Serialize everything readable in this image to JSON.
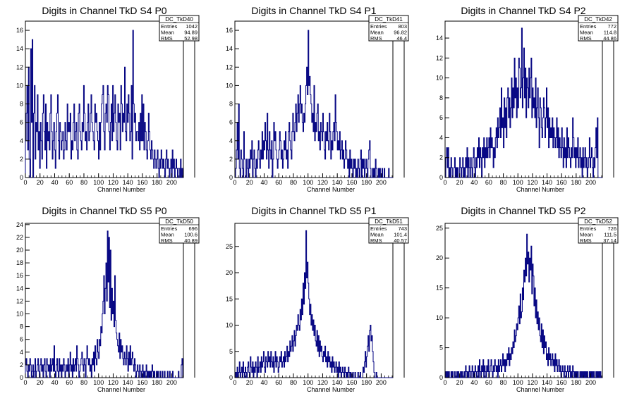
{
  "chart_data": [
    {
      "type": "histogram",
      "title": "Digits in Channel TkD S4 P0",
      "xlabel": "Channel Number",
      "xlim": [
        0,
        216
      ],
      "ylim": [
        0,
        17
      ],
      "xticks": [
        0,
        20,
        40,
        60,
        80,
        100,
        120,
        140,
        160,
        180,
        200
      ],
      "yticks": [
        0,
        2,
        4,
        6,
        8,
        10,
        12,
        14,
        16
      ],
      "stats": {
        "name": "DC_TkD40",
        "entries": "1042",
        "mean": "94.89",
        "rms": "52.98"
      },
      "values": [
        4,
        7,
        10,
        3,
        12,
        2,
        0,
        14,
        6,
        15,
        0,
        7,
        10,
        2,
        6,
        5,
        9,
        3,
        5,
        1,
        6,
        4,
        2,
        7,
        9,
        5,
        3,
        8,
        1,
        6,
        4,
        5,
        3,
        7,
        9,
        5,
        2,
        4,
        6,
        3,
        1,
        5,
        7,
        9,
        4,
        2,
        6,
        5,
        3,
        4,
        5,
        2,
        3,
        6,
        4,
        3,
        8,
        5,
        6,
        5,
        7,
        2,
        4,
        3,
        6,
        8,
        4,
        5,
        6,
        3,
        2,
        7,
        8,
        5,
        4,
        3,
        6,
        5,
        10,
        7,
        4,
        5,
        3,
        6,
        8,
        4,
        5,
        7,
        9,
        6,
        5,
        4,
        3,
        8,
        6,
        7,
        5,
        4,
        2,
        6,
        3,
        6,
        8,
        9,
        10,
        5,
        3,
        7,
        8,
        6,
        10,
        9,
        5,
        3,
        6,
        8,
        4,
        10,
        5,
        7,
        9,
        6,
        4,
        3,
        8,
        6,
        7,
        3,
        10,
        8,
        5,
        7,
        6,
        12,
        5,
        4,
        8,
        6,
        9,
        7,
        4,
        5,
        10,
        2,
        16,
        8,
        6,
        7,
        4,
        5,
        5,
        4,
        6,
        3,
        7,
        4,
        9,
        4,
        8,
        3,
        6,
        5,
        3,
        2,
        4,
        7,
        5,
        3,
        2,
        4,
        3,
        2,
        1,
        3,
        2,
        1,
        2,
        3,
        1,
        0,
        2,
        1,
        3,
        2,
        1,
        2,
        1,
        0,
        2,
        3,
        1,
        2,
        1,
        0,
        1,
        2,
        0,
        3,
        1,
        2,
        0,
        1,
        2,
        1,
        0,
        1,
        1,
        0,
        2,
        0,
        1,
        0
      ]
    },
    {
      "type": "histogram",
      "title": "Digits in Channel TkD S4 P1",
      "xlabel": "Channel Number",
      "xlim": [
        0,
        216
      ],
      "ylim": [
        0,
        17
      ],
      "xticks": [
        0,
        20,
        40,
        60,
        80,
        100,
        120,
        140,
        160,
        180,
        200
      ],
      "yticks": [
        0,
        2,
        4,
        6,
        8,
        10,
        12,
        14,
        16
      ],
      "stats": {
        "name": "DC_TkD41",
        "entries": "803",
        "mean": "96.82",
        "rms": "46.4"
      },
      "values": [
        0,
        1,
        3,
        6,
        2,
        8,
        1,
        0,
        3,
        2,
        1,
        0,
        5,
        2,
        0,
        0,
        2,
        1,
        0,
        2,
        1,
        3,
        2,
        4,
        0,
        2,
        3,
        1,
        0,
        2,
        1,
        3,
        4,
        2,
        1,
        3,
        2,
        5,
        2,
        4,
        3,
        6,
        4,
        2,
        7,
        3,
        1,
        5,
        3,
        2,
        4,
        0,
        2,
        6,
        4,
        5,
        3,
        2,
        1,
        2,
        3,
        5,
        4,
        2,
        3,
        1,
        2,
        4,
        3,
        5,
        2,
        3,
        1,
        5,
        6,
        4,
        3,
        2,
        5,
        7,
        5,
        4,
        6,
        8,
        5,
        7,
        9,
        6,
        8,
        10,
        7,
        8,
        6,
        5,
        7,
        6,
        8,
        10,
        12,
        9,
        16,
        10,
        11,
        9,
        8,
        6,
        7,
        5,
        10,
        4,
        6,
        5,
        7,
        8,
        4,
        5,
        3,
        6,
        5,
        4,
        7,
        5,
        3,
        2,
        5,
        4,
        6,
        4,
        3,
        7,
        5,
        2,
        4,
        3,
        5,
        6,
        4,
        9,
        6,
        5,
        3,
        4,
        3,
        5,
        2,
        3,
        4,
        2,
        3,
        1,
        2,
        4,
        3,
        2,
        1,
        2,
        0,
        3,
        1,
        2,
        1,
        0,
        2,
        1,
        2,
        0,
        1,
        0,
        2,
        1,
        0,
        2,
        3,
        0,
        2,
        1,
        2,
        0,
        1,
        2,
        1,
        0,
        2,
        3,
        4,
        1,
        0,
        0,
        1,
        0,
        1,
        0,
        2,
        1,
        0,
        0,
        1,
        0,
        1,
        0,
        0,
        1,
        0,
        0,
        1,
        0,
        0,
        0,
        0,
        0,
        1,
        0,
        0,
        0,
        0,
        0
      ]
    },
    {
      "type": "histogram",
      "title": "Digits in Channel TkD S4 P2",
      "xlabel": "Channel Number",
      "xlim": [
        0,
        216
      ],
      "ylim": [
        0,
        15.7
      ],
      "xticks": [
        0,
        20,
        40,
        60,
        80,
        100,
        120,
        140,
        160,
        180,
        200
      ],
      "yticks": [
        0,
        2,
        4,
        6,
        8,
        10,
        12,
        14
      ],
      "stats": {
        "name": "DC_TkD42",
        "entries": "772",
        "mean": "114.8",
        "rms": "44.86"
      },
      "values": [
        0,
        2,
        3,
        1,
        3,
        0,
        1,
        0,
        2,
        1,
        0,
        0,
        1,
        2,
        0,
        1,
        0,
        1,
        0,
        0,
        2,
        1,
        0,
        1,
        2,
        0,
        1,
        0,
        2,
        1,
        3,
        0,
        2,
        1,
        0,
        2,
        1,
        0,
        2,
        3,
        1,
        0,
        2,
        1,
        3,
        2,
        4,
        1,
        3,
        2,
        0,
        3,
        2,
        4,
        1,
        3,
        2,
        4,
        2,
        3,
        4,
        2,
        5,
        3,
        4,
        3,
        1,
        3,
        2,
        4,
        5,
        3,
        6,
        4,
        5,
        7,
        4,
        9,
        5,
        6,
        3,
        8,
        5,
        7,
        4,
        8,
        9,
        6,
        8,
        5,
        7,
        10,
        6,
        9,
        7,
        12,
        8,
        10,
        6,
        9,
        7,
        12,
        11,
        8,
        9,
        15,
        7,
        10,
        13,
        8,
        11,
        6,
        10,
        9,
        7,
        11,
        8,
        10,
        12,
        6,
        9,
        7,
        8,
        6,
        10,
        5,
        7,
        9,
        6,
        3,
        8,
        7,
        5,
        4,
        6,
        8,
        7,
        4,
        6,
        9,
        5,
        7,
        3,
        6,
        4,
        5,
        4,
        6,
        3,
        5,
        4,
        3,
        4,
        6,
        3,
        5,
        2,
        4,
        3,
        2,
        5,
        3,
        1,
        4,
        2,
        3,
        1,
        5,
        2,
        4,
        3,
        2,
        1,
        3,
        2,
        6,
        4,
        2,
        3,
        1,
        3,
        2,
        4,
        1,
        2,
        3,
        1,
        2,
        0,
        3,
        1,
        2,
        3,
        1,
        2,
        0,
        1,
        2,
        4,
        1,
        2,
        3,
        1,
        0,
        2,
        1,
        3,
        5,
        2,
        6,
        0,
        0,
        0,
        0,
        0,
        0
      ]
    },
    {
      "type": "histogram",
      "title": "Digits in Channel TkD S5 P0",
      "xlabel": "Channel Number",
      "xlim": [
        0,
        216
      ],
      "ylim": [
        0,
        24.2
      ],
      "xticks": [
        0,
        20,
        40,
        60,
        80,
        100,
        120,
        140,
        160,
        180,
        200
      ],
      "yticks": [
        0,
        2,
        4,
        6,
        8,
        10,
        12,
        14,
        16,
        18,
        20,
        22,
        24
      ],
      "stats": {
        "name": "DC_TkD50",
        "entries": "696",
        "mean": "100.6",
        "rms": "40.89"
      },
      "values": [
        2,
        3,
        1,
        0,
        2,
        1,
        3,
        2,
        0,
        1,
        2,
        0,
        1,
        3,
        0,
        1,
        2,
        3,
        1,
        0,
        2,
        3,
        1,
        2,
        0,
        2,
        3,
        1,
        0,
        3,
        2,
        1,
        2,
        0,
        3,
        1,
        2,
        3,
        1,
        5,
        1,
        0,
        2,
        3,
        1,
        0,
        3,
        1,
        2,
        0,
        2,
        1,
        3,
        2,
        0,
        1,
        2,
        1,
        3,
        0,
        2,
        4,
        1,
        2,
        0,
        3,
        1,
        2,
        3,
        1,
        5,
        3,
        2,
        0,
        1,
        2,
        3,
        4,
        2,
        1,
        3,
        2,
        0,
        3,
        5,
        3,
        2,
        3,
        1,
        2,
        0,
        3,
        2,
        4,
        1,
        5,
        3,
        2,
        6,
        4,
        3,
        6,
        5,
        8,
        7,
        10,
        12,
        16,
        10,
        14,
        18,
        12,
        23,
        15,
        22,
        11,
        20,
        9,
        14,
        10,
        12,
        8,
        16,
        9,
        7,
        6,
        5,
        4,
        7,
        3,
        6,
        4,
        5,
        3,
        2,
        4,
        3,
        2,
        5,
        3,
        1,
        4,
        2,
        5,
        2,
        3,
        4,
        2,
        1,
        3,
        2,
        0,
        1,
        2,
        1,
        0,
        2,
        1,
        0,
        1,
        2,
        0,
        1,
        0,
        1,
        2,
        0,
        1,
        0,
        1,
        0,
        1,
        0,
        2,
        1,
        0,
        1,
        0,
        0,
        1,
        0,
        1,
        0,
        0,
        1,
        0,
        0,
        1,
        0,
        0,
        1,
        0,
        0,
        0,
        1,
        0,
        0,
        1,
        0,
        0,
        0,
        1,
        0,
        0,
        0,
        0,
        0,
        0,
        0,
        1,
        0,
        0,
        0,
        2,
        3,
        0
      ]
    },
    {
      "type": "histogram",
      "title": "Digits in Channel TkD S5 P1",
      "xlabel": "Channel Number",
      "xlim": [
        0,
        216
      ],
      "ylim": [
        0,
        29.4
      ],
      "xticks": [
        0,
        20,
        40,
        60,
        80,
        100,
        120,
        140,
        160,
        180,
        200
      ],
      "yticks": [
        0,
        5,
        10,
        15,
        20,
        25
      ],
      "stats": {
        "name": "DC_TkD51",
        "entries": "743",
        "mean": "101.4",
        "rms": "40.57"
      },
      "values": [
        0,
        1,
        0,
        2,
        0,
        1,
        3,
        0,
        1,
        2,
        0,
        3,
        1,
        0,
        2,
        1,
        0,
        2,
        3,
        1,
        0,
        4,
        2,
        1,
        3,
        0,
        2,
        1,
        3,
        2,
        0,
        4,
        1,
        2,
        3,
        1,
        4,
        2,
        3,
        5,
        2,
        1,
        4,
        3,
        2,
        5,
        3,
        4,
        2,
        5,
        3,
        2,
        4,
        1,
        3,
        5,
        2,
        4,
        3,
        1,
        2,
        4,
        3,
        5,
        2,
        3,
        4,
        2,
        5,
        3,
        4,
        6,
        3,
        5,
        4,
        7,
        5,
        6,
        8,
        5,
        7,
        9,
        6,
        8,
        10,
        9,
        12,
        10,
        9,
        13,
        11,
        15,
        12,
        18,
        14,
        20,
        17,
        28,
        19,
        22,
        18,
        15,
        12,
        14,
        10,
        12,
        9,
        11,
        8,
        10,
        7,
        6,
        9,
        5,
        8,
        4,
        7,
        5,
        6,
        4,
        3,
        5,
        4,
        6,
        3,
        4,
        2,
        5,
        3,
        4,
        2,
        3,
        1,
        4,
        2,
        3,
        1,
        2,
        3,
        1,
        2,
        0,
        3,
        1,
        2,
        0,
        1,
        2,
        1,
        0,
        2,
        1,
        0,
        1,
        0,
        2,
        1,
        0,
        1,
        0,
        0,
        1,
        0,
        0,
        1,
        0,
        0,
        0,
        1,
        0,
        0,
        1,
        0,
        0,
        0,
        2,
        1,
        3,
        5,
        2,
        4,
        6,
        8,
        5,
        9,
        10,
        7,
        8,
        5,
        3,
        1,
        0,
        0,
        1,
        0,
        0,
        0,
        0,
        0,
        0,
        0,
        0,
        0,
        0,
        0,
        0,
        0,
        0,
        0,
        0,
        0,
        0,
        0,
        0,
        0,
        0
      ]
    },
    {
      "type": "histogram",
      "title": "Digits in Channel TkD S5 P2",
      "xlabel": "Channel Number",
      "xlim": [
        0,
        216
      ],
      "ylim": [
        0,
        25.8
      ],
      "xticks": [
        0,
        20,
        40,
        60,
        80,
        100,
        120,
        140,
        160,
        180,
        200
      ],
      "yticks": [
        0,
        5,
        10,
        15,
        20,
        25
      ],
      "stats": {
        "name": "DC_TkD52",
        "entries": "726",
        "mean": "111.5",
        "rms": "37.14"
      },
      "values": [
        0,
        1,
        0,
        1,
        0,
        1,
        0,
        0,
        1,
        0,
        1,
        0,
        0,
        1,
        0,
        0,
        1,
        0,
        1,
        0,
        0,
        1,
        0,
        1,
        0,
        0,
        1,
        0,
        2,
        1,
        0,
        1,
        0,
        2,
        1,
        0,
        1,
        2,
        0,
        1,
        0,
        2,
        1,
        0,
        1,
        2,
        0,
        3,
        1,
        0,
        2,
        1,
        3,
        0,
        2,
        1,
        0,
        2,
        1,
        3,
        0,
        1,
        2,
        3,
        1,
        0,
        2,
        1,
        3,
        2,
        1,
        2,
        0,
        3,
        1,
        2,
        3,
        1,
        2,
        4,
        2,
        3,
        1,
        3,
        2,
        4,
        3,
        5,
        2,
        4,
        3,
        5,
        4,
        6,
        5,
        8,
        6,
        7,
        9,
        8,
        10,
        12,
        9,
        14,
        10,
        11,
        15,
        13,
        18,
        16,
        20,
        17,
        24,
        19,
        21,
        16,
        20,
        18,
        22,
        14,
        19,
        17,
        12,
        15,
        10,
        13,
        9,
        11,
        8,
        10,
        7,
        6,
        9,
        5,
        8,
        4,
        7,
        5,
        6,
        3,
        4,
        2,
        5,
        3,
        4,
        2,
        3,
        4,
        2,
        3,
        1,
        4,
        2,
        3,
        1,
        2,
        3,
        1,
        2,
        0,
        1,
        2,
        1,
        0,
        2,
        1,
        0,
        1,
        2,
        0,
        1,
        2,
        0,
        1,
        0,
        2,
        1,
        0,
        1,
        0,
        1,
        0,
        1,
        0,
        0,
        1,
        0,
        1,
        0,
        1,
        0,
        1,
        0,
        1,
        0,
        1,
        0,
        0,
        1,
        0,
        1,
        0,
        1,
        0,
        1,
        0,
        0,
        1,
        0,
        1,
        0,
        1,
        0,
        1,
        0,
        0
      ]
    }
  ],
  "stats_labels": {
    "entries": "Entries",
    "mean": "Mean",
    "rms": "RMS"
  },
  "colors": {
    "histogram_line": "#000080",
    "axis": "#000000",
    "background": "#ffffff"
  }
}
